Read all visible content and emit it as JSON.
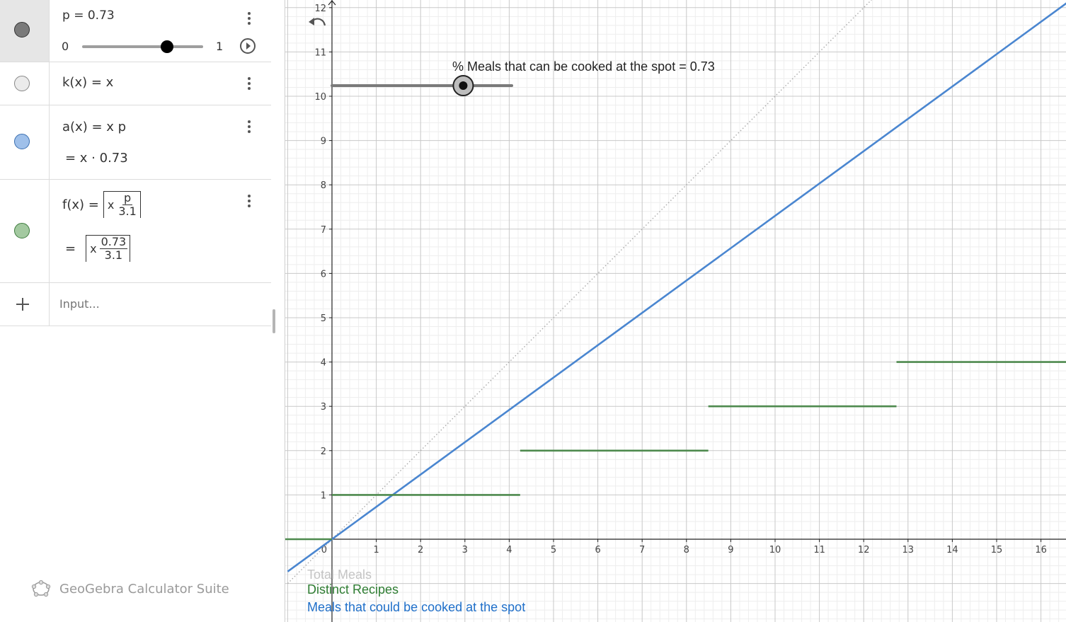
{
  "algebra": {
    "slider_p": {
      "label": "p = 0.73",
      "min": "0",
      "max": "1",
      "value": 0.73,
      "marble_color": "#6b6b6b"
    },
    "k": {
      "def": "k(x) = x",
      "marble_color": "#e6e6e6"
    },
    "a": {
      "def": "a(x) = x p",
      "value": "= x · 0.73",
      "marble_color": "#9fc0ea"
    },
    "f": {
      "lhs": "f(x) =",
      "x": "x",
      "num": "p",
      "den": "3.1",
      "eq": "=",
      "x2": "x",
      "num2": "0.73",
      "den2": "3.1",
      "marble_color": "#a3c9a0"
    },
    "input_placeholder": "Input...",
    "add_icon": "plus-icon",
    "brand": "GeoGebra Calculator Suite"
  },
  "graphics": {
    "x_ticks": [
      "1",
      "2",
      "3",
      "4",
      "5",
      "6",
      "7",
      "8",
      "9",
      "10",
      "11",
      "12",
      "13",
      "14",
      "15",
      "16"
    ],
    "y_ticks": [
      "1",
      "2",
      "3",
      "4",
      "5",
      "6",
      "7",
      "8",
      "9",
      "10",
      "11",
      "12"
    ],
    "origin_label": "0",
    "slider_caption": "% Meals that can be cooked at the spot = 0.73",
    "slider_value": 0.73,
    "undo_icon": "undo-icon",
    "legend": [
      {
        "text": "Total Meals",
        "color": "#c4c4c4"
      },
      {
        "text": "Distinct Recipes",
        "color": "#2e7d32"
      },
      {
        "text": "Meals that could be cooked at the spot",
        "color": "#1f6fc9"
      }
    ],
    "colors": {
      "grid_minor": "#eeeeee",
      "grid_major": "#c8c8c8",
      "line_blue": "#4a86d0",
      "line_green": "#4e8a4e",
      "line_gray": "#aaaaaa"
    }
  }
}
